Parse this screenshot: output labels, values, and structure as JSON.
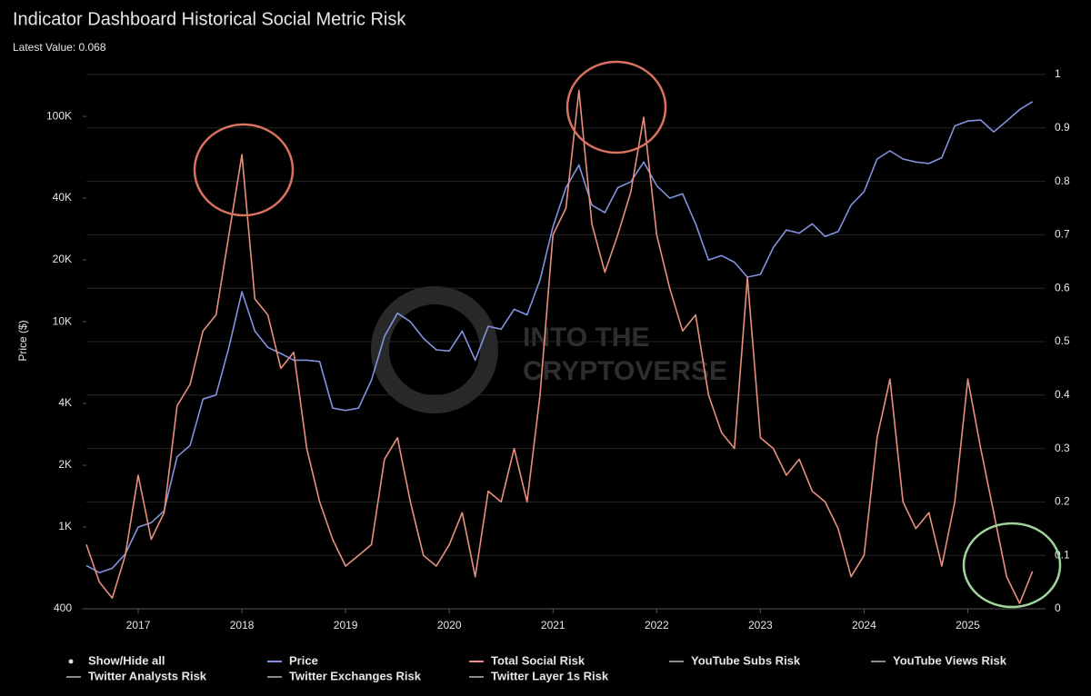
{
  "chart_data": {
    "type": "line",
    "title": "Indicator Dashboard Historical Social Metric Risk",
    "subtitle": "Latest Value: 0.068",
    "y_label": "Price ($)",
    "watermark": [
      "INTO THE",
      "CRYPTOVERSE"
    ],
    "ylog": true,
    "grid": "y2",
    "xlim": [
      2016.5,
      2025.75
    ],
    "xticks": [
      2017,
      2018,
      2019,
      2020,
      2021,
      2022,
      2023,
      2024,
      2025
    ],
    "ylim": [
      400,
      160000
    ],
    "yticks": [
      400,
      {
        "value": 1000,
        "label": "1K"
      },
      {
        "value": 2000,
        "label": "2K"
      },
      {
        "value": 4000,
        "label": "4K"
      },
      {
        "value": 10000,
        "label": "10K"
      },
      {
        "value": 20000,
        "label": "20K"
      },
      {
        "value": 40000,
        "label": "40K"
      },
      {
        "value": 100000,
        "label": "100K"
      }
    ],
    "y2lim": [
      0,
      1
    ],
    "y2ticks": [
      0,
      0.1,
      0.2,
      0.3,
      0.4,
      0.5,
      0.6,
      0.7,
      0.8,
      0.9,
      1
    ],
    "x": [
      2016.5,
      2016.625,
      2016.75,
      2016.875,
      2017,
      2017.125,
      2017.25,
      2017.375,
      2017.5,
      2017.625,
      2017.75,
      2017.875,
      2018,
      2018.125,
      2018.25,
      2018.375,
      2018.5,
      2018.625,
      2018.75,
      2018.875,
      2019,
      2019.125,
      2019.25,
      2019.375,
      2019.5,
      2019.625,
      2019.75,
      2019.875,
      2020,
      2020.125,
      2020.25,
      2020.375,
      2020.5,
      2020.625,
      2020.75,
      2020.875,
      2021,
      2021.125,
      2021.25,
      2021.375,
      2021.5,
      2021.625,
      2021.75,
      2021.875,
      2022,
      2022.125,
      2022.25,
      2022.375,
      2022.5,
      2022.625,
      2022.75,
      2022.875,
      2023,
      2023.125,
      2023.25,
      2023.375,
      2023.5,
      2023.625,
      2023.75,
      2023.875,
      2024,
      2024.125,
      2024.25,
      2024.375,
      2024.5,
      2024.625,
      2024.75,
      2024.875,
      2025,
      2025.125,
      2025.25,
      2025.375,
      2025.5,
      2025.625
    ],
    "series": [
      {
        "name": "Price",
        "color": "#8393e0",
        "axis": "y",
        "values": [
          650,
          600,
          630,
          740,
          1000,
          1050,
          1200,
          2200,
          2500,
          4200,
          4400,
          7500,
          14000,
          9000,
          7500,
          7000,
          6500,
          6500,
          6400,
          3800,
          3700,
          3800,
          5200,
          8500,
          11000,
          10000,
          8300,
          7300,
          7200,
          9000,
          6500,
          9500,
          9200,
          11500,
          10800,
          16000,
          29000,
          45000,
          58000,
          37000,
          34000,
          45000,
          48000,
          60000,
          46000,
          40000,
          42000,
          30000,
          20000,
          21000,
          19500,
          16500,
          17000,
          23000,
          28000,
          27000,
          30000,
          26000,
          27500,
          37000,
          43000,
          62000,
          68000,
          62000,
          60000,
          59000,
          63000,
          90000,
          95000,
          96000,
          84000,
          95000,
          108000,
          118000
        ]
      },
      {
        "name": "Total Social Risk",
        "color": "#e8907e",
        "axis": "y2",
        "values": [
          0.12,
          0.05,
          0.02,
          0.1,
          0.25,
          0.13,
          0.18,
          0.38,
          0.42,
          0.52,
          0.55,
          0.7,
          0.85,
          0.58,
          0.55,
          0.45,
          0.48,
          0.3,
          0.2,
          0.13,
          0.08,
          0.1,
          0.12,
          0.28,
          0.32,
          0.2,
          0.1,
          0.08,
          0.12,
          0.18,
          0.06,
          0.22,
          0.2,
          0.3,
          0.2,
          0.4,
          0.7,
          0.75,
          0.97,
          0.72,
          0.63,
          0.7,
          0.78,
          0.92,
          0.7,
          0.6,
          0.52,
          0.55,
          0.4,
          0.33,
          0.3,
          0.62,
          0.32,
          0.3,
          0.25,
          0.28,
          0.22,
          0.2,
          0.15,
          0.06,
          0.1,
          0.32,
          0.43,
          0.2,
          0.15,
          0.18,
          0.08,
          0.2,
          0.43,
          0.3,
          0.18,
          0.06,
          0.01,
          0.07
        ]
      }
    ],
    "legend": {
      "toggle": "Show/Hide all",
      "hidden_series": [
        "YouTube Subs Risk",
        "YouTube Views Risk",
        "Twitter Analysts Risk",
        "Twitter Exchanges Risk",
        "Twitter Layer 1s Risk"
      ],
      "hidden_color": "#8a8a8a"
    }
  }
}
